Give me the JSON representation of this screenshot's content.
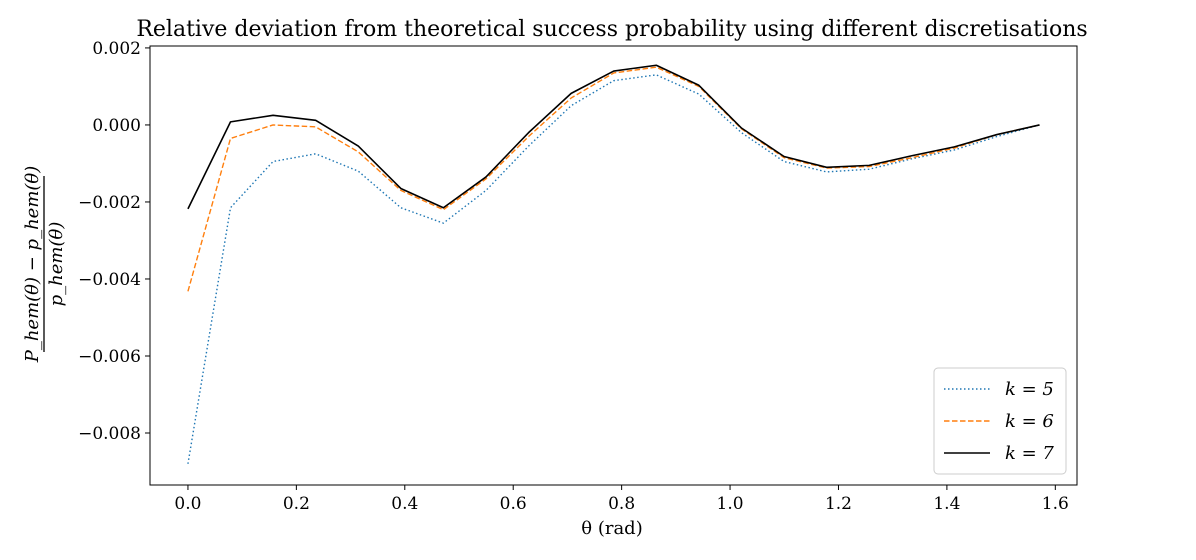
{
  "chart_data": {
    "type": "line",
    "title": "Relative deviation from theoretical success probability using different discretisations",
    "xlabel": "θ (rad)",
    "ylabel": {
      "numerator": "P_hem(θ) − p_hem(θ)",
      "denominator": "p_hem(θ)"
    },
    "xlim": [
      -0.07,
      1.64
    ],
    "ylim": [
      -0.00935,
      0.00205
    ],
    "xticks": [
      0.0,
      0.2,
      0.4,
      0.6,
      0.8,
      1.0,
      1.2,
      1.4,
      1.6
    ],
    "xtick_labels": [
      "0.0",
      "0.2",
      "0.4",
      "0.6",
      "0.8",
      "1.0",
      "1.2",
      "1.4",
      "1.6"
    ],
    "yticks": [
      0.002,
      0.0,
      -0.002,
      -0.004,
      -0.006,
      -0.008
    ],
    "ytick_labels": [
      "0.002",
      "0.000",
      "−0.002",
      "−0.004",
      "−0.006",
      "−0.008"
    ],
    "legend_position": "bottom-right",
    "x": [
      0.0,
      0.0785,
      0.157,
      0.2356,
      0.3142,
      0.3927,
      0.4712,
      0.5498,
      0.6283,
      0.7069,
      0.7854,
      0.8639,
      0.9425,
      1.021,
      1.0996,
      1.1781,
      1.2566,
      1.3352,
      1.4137,
      1.4923,
      1.5708
    ],
    "series": [
      {
        "name": "k = 5",
        "color": "#1f77b4",
        "dash": "dotted",
        "values": [
          -0.0088,
          -0.00215,
          -0.00095,
          -0.00075,
          -0.0012,
          -0.00215,
          -0.00255,
          -0.0017,
          -0.00055,
          0.0005,
          0.00115,
          0.0013,
          0.0008,
          -0.0002,
          -0.00095,
          -0.00122,
          -0.00115,
          -0.00088,
          -0.00065,
          -0.0003,
          0.0
        ]
      },
      {
        "name": "k = 6",
        "color": "#ff7f0e",
        "dash": "dashed",
        "values": [
          -0.00432,
          -0.00035,
          0.0,
          -5e-05,
          -0.0007,
          -0.0017,
          -0.0022,
          -0.0014,
          -0.0003,
          0.0007,
          0.00135,
          0.0015,
          0.001,
          -0.0001,
          -0.00085,
          -0.00112,
          -0.00108,
          -0.00085,
          -0.0006,
          -0.00025,
          0.0
        ]
      },
      {
        "name": "k = 7",
        "color": "#000000",
        "dash": "solid",
        "values": [
          -0.00218,
          8e-05,
          0.00025,
          0.00012,
          -0.00055,
          -0.00165,
          -0.00215,
          -0.00135,
          -0.0002,
          0.00082,
          0.0014,
          0.00155,
          0.00103,
          -8e-05,
          -0.00082,
          -0.0011,
          -0.00105,
          -0.0008,
          -0.00057,
          -0.00025,
          0.0
        ]
      }
    ]
  }
}
